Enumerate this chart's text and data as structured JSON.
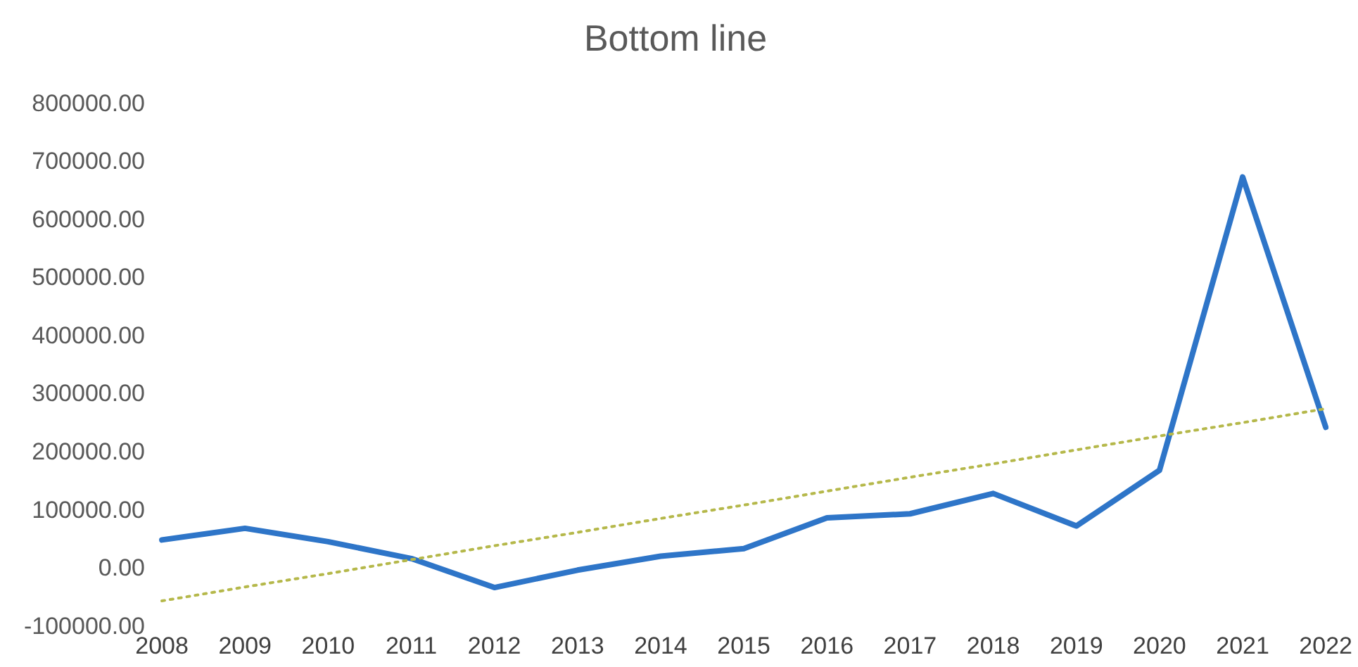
{
  "chart_data": {
    "type": "line",
    "title": "Bottom line",
    "categories": [
      "2008",
      "2009",
      "2010",
      "2011",
      "2012",
      "2013",
      "2014",
      "2015",
      "2016",
      "2017",
      "2018",
      "2019",
      "2020",
      "2021",
      "2022"
    ],
    "series": [
      {
        "color": "#2e75c8",
        "values": [
          50000,
          70000,
          47000,
          18000,
          -32000,
          -2000,
          22000,
          35000,
          88000,
          95000,
          130000,
          74000,
          170000,
          675000,
          244000
        ]
      },
      {
        "type": "line",
        "line_style": "dotted",
        "color": "#b5b84a",
        "values": [
          -55000,
          -31000,
          -8000,
          16000,
          40000,
          63000,
          87000,
          110000,
          134000,
          158000,
          181000,
          205000,
          229000,
          252000,
          276000
        ]
      }
    ],
    "ylim": [
      -100000,
      800000
    ],
    "yticks": [
      {
        "value": -100000,
        "label": "-100000.00"
      },
      {
        "value": 0,
        "label": "0.00"
      },
      {
        "value": 100000,
        "label": "100000.00"
      },
      {
        "value": 200000,
        "label": "200000.00"
      },
      {
        "value": 300000,
        "label": "300000.00"
      },
      {
        "value": 400000,
        "label": "400000.00"
      },
      {
        "value": 500000,
        "label": "500000.00"
      },
      {
        "value": 600000,
        "label": "600000.00"
      },
      {
        "value": 700000,
        "label": "700000.00"
      },
      {
        "value": 800000,
        "label": "800000.00"
      }
    ],
    "grid": false,
    "legend": false,
    "marker": "none"
  }
}
